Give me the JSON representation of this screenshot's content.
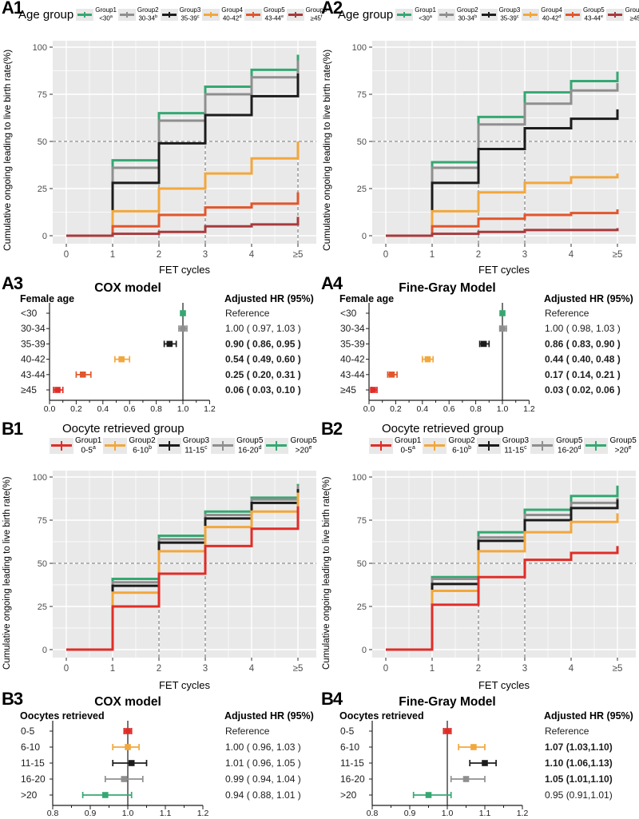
{
  "palette": {
    "green": "#35a872",
    "gray": "#8f8f8f",
    "black": "#1c1c1c",
    "orange": "#f2a73d",
    "orangered": "#e1562c",
    "darkred": "#a83a3d",
    "red": "#e02d28"
  },
  "style": {
    "panel_bg": "#e9e9e9",
    "grid": "#ffffff",
    "dash": "#8a8a8a",
    "tick": "#333333",
    "tick_label": "#4d4d4d",
    "legend_key_bg": "#e8e8e8"
  },
  "axes": {
    "ylabel": "Cumulative ongoing leading to live birth rate(%)",
    "xlabel": "FET cycles"
  },
  "chart_data": [
    {
      "id": "A1",
      "panel_label": "A1",
      "type": "step",
      "legend_title": "Age group",
      "legend_layout": "inline",
      "legend": [
        {
          "name": "Group1",
          "range": "<30",
          "sup": "a",
          "color": "green"
        },
        {
          "name": "Group2",
          "range": "30-34",
          "sup": "b",
          "color": "gray"
        },
        {
          "name": "Group3",
          "range": "35-39",
          "sup": "c",
          "color": "black"
        },
        {
          "name": "Group4",
          "range": "40-42",
          "sup": "d",
          "color": "orange"
        },
        {
          "name": "Group5",
          "range": "43-44",
          "sup": "e",
          "color": "orangered"
        },
        {
          "name": "Group6",
          "range": "≥45",
          "sup": "f",
          "color": "darkred"
        }
      ],
      "x_tick_labels": [
        "0",
        "1",
        "2",
        "3",
        "4",
        "≥5"
      ],
      "y_ticks": [
        0,
        25,
        50,
        75,
        100
      ],
      "ylim": [
        0,
        100
      ],
      "hline": 50,
      "vlines": [
        2,
        3,
        5
      ],
      "series": [
        {
          "name": "<30",
          "color": "green",
          "values": [
            0,
            40,
            65,
            79,
            88,
            96
          ]
        },
        {
          "name": "30-34",
          "color": "gray",
          "values": [
            0,
            36,
            61,
            75,
            84,
            93
          ]
        },
        {
          "name": "35-39",
          "color": "black",
          "values": [
            0,
            28,
            49,
            64,
            74,
            86
          ]
        },
        {
          "name": "40-42",
          "color": "orange",
          "values": [
            0,
            13,
            25,
            33,
            41,
            50
          ]
        },
        {
          "name": "43-44",
          "color": "orangered",
          "values": [
            0,
            5,
            11,
            15,
            17,
            23
          ]
        },
        {
          "name": "≥45",
          "color": "darkred",
          "values": [
            0,
            1,
            2,
            5,
            6,
            10
          ]
        }
      ]
    },
    {
      "id": "A2",
      "panel_label": "A2",
      "type": "step",
      "legend_title": "Age group",
      "legend_layout": "inline",
      "legend": [
        {
          "name": "Group1",
          "range": "<30",
          "sup": "a",
          "color": "green"
        },
        {
          "name": "Group2",
          "range": "30-34",
          "sup": "b",
          "color": "gray"
        },
        {
          "name": "Group3",
          "range": "35-39",
          "sup": "c",
          "color": "black"
        },
        {
          "name": "Group4",
          "range": "40-42",
          "sup": "d",
          "color": "orange"
        },
        {
          "name": "Group5",
          "range": "43-44",
          "sup": "e",
          "color": "orangered"
        },
        {
          "name": "Group6",
          "range": "≥45",
          "sup": "f",
          "color": "darkred"
        }
      ],
      "x_tick_labels": [
        "0",
        "1",
        "2",
        "3",
        "4",
        "≥5"
      ],
      "y_ticks": [
        0,
        25,
        50,
        75,
        100
      ],
      "ylim": [
        0,
        100
      ],
      "hline": 50,
      "vlines": [
        2,
        3
      ],
      "series": [
        {
          "name": "<30",
          "color": "green",
          "values": [
            0,
            39,
            63,
            76,
            82,
            87
          ]
        },
        {
          "name": "30-34",
          "color": "gray",
          "values": [
            0,
            36,
            59,
            70,
            77,
            81
          ]
        },
        {
          "name": "35-39",
          "color": "black",
          "values": [
            0,
            28,
            46,
            57,
            62,
            67
          ]
        },
        {
          "name": "40-42",
          "color": "orange",
          "values": [
            0,
            13,
            23,
            28,
            31,
            33
          ]
        },
        {
          "name": "43-44",
          "color": "orangered",
          "values": [
            0,
            5,
            9,
            11,
            12,
            14
          ]
        },
        {
          "name": "≥45",
          "color": "darkred",
          "values": [
            0,
            1,
            2,
            3,
            3,
            4
          ]
        }
      ]
    },
    {
      "id": "A3",
      "panel_label": "A3",
      "type": "forest",
      "title": "COX model",
      "col_header": "Female age",
      "hr_header": "Adjusted HR (95%)",
      "xlim": [
        0.0,
        1.2
      ],
      "x_ticks": [
        0.0,
        0.2,
        0.4,
        0.6,
        0.8,
        1.0,
        1.2
      ],
      "x_tick_labels": [
        "0.0",
        "0.2",
        "0.4",
        "0.6",
        "0.8",
        "1.0",
        "1.2"
      ],
      "refline": 1.0,
      "rows": [
        {
          "label": "<30",
          "color": "green",
          "est": 1.0,
          "lo": 1.0,
          "hi": 1.0,
          "hr": "Reference",
          "bold": false
        },
        {
          "label": "30-34",
          "color": "gray",
          "est": 1.0,
          "lo": 0.97,
          "hi": 1.03,
          "hr": "1.00 ( 0.97, 1.03 )",
          "bold": false
        },
        {
          "label": "35-39",
          "color": "black",
          "est": 0.9,
          "lo": 0.86,
          "hi": 0.95,
          "hr": "0.90 ( 0.86, 0.95 )",
          "bold": true
        },
        {
          "label": "40-42",
          "color": "orange",
          "est": 0.54,
          "lo": 0.49,
          "hi": 0.6,
          "hr": "0.54 ( 0.49, 0.60 )",
          "bold": true
        },
        {
          "label": "43-44",
          "color": "orangered",
          "est": 0.25,
          "lo": 0.2,
          "hi": 0.31,
          "hr": "0.25 ( 0.20, 0.31 )",
          "bold": true
        },
        {
          "label": "≥45",
          "color": "red",
          "est": 0.06,
          "lo": 0.03,
          "hi": 0.1,
          "hr": "0.06 ( 0.03, 0.10 )",
          "bold": true
        }
      ]
    },
    {
      "id": "A4",
      "panel_label": "A4",
      "type": "forest",
      "title": "Fine-Gray Model",
      "col_header": "Female age",
      "hr_header": "Adjusted HR (95%)",
      "xlim": [
        0.0,
        1.2
      ],
      "x_ticks": [
        0.0,
        0.2,
        0.4,
        0.6,
        0.8,
        1.0,
        1.2
      ],
      "x_tick_labels": [
        "0.0",
        "0.2",
        "0.4",
        "0.6",
        "0.8",
        "1.0",
        "1.2"
      ],
      "refline": 1.0,
      "rows": [
        {
          "label": "<30",
          "color": "green",
          "est": 1.0,
          "lo": 1.0,
          "hi": 1.0,
          "hr": "Reference",
          "bold": false
        },
        {
          "label": "30-34",
          "color": "gray",
          "est": 1.0,
          "lo": 0.98,
          "hi": 1.03,
          "hr": "1.00 ( 0.98, 1.03 )",
          "bold": false
        },
        {
          "label": "35-39",
          "color": "black",
          "est": 0.86,
          "lo": 0.83,
          "hi": 0.9,
          "hr": "0.86 ( 0.83, 0.90 )",
          "bold": true
        },
        {
          "label": "40-42",
          "color": "orange",
          "est": 0.44,
          "lo": 0.4,
          "hi": 0.48,
          "hr": "0.44 ( 0.40, 0.48 )",
          "bold": true
        },
        {
          "label": "43-44",
          "color": "orangered",
          "est": 0.17,
          "lo": 0.14,
          "hi": 0.21,
          "hr": "0.17 ( 0.14, 0.21 )",
          "bold": true
        },
        {
          "label": "≥45",
          "color": "red",
          "est": 0.03,
          "lo": 0.02,
          "hi": 0.06,
          "hr": "0.03 ( 0.02, 0.06 )",
          "bold": true
        }
      ]
    },
    {
      "id": "B1",
      "panel_label": "B1",
      "type": "step",
      "legend_title": "Oocyte retrieved group",
      "legend_layout": "titled",
      "legend": [
        {
          "name": "Group1",
          "range": "0-5",
          "sup": "a",
          "color": "red"
        },
        {
          "name": "Group2",
          "range": "6-10",
          "sup": "b",
          "color": "orange"
        },
        {
          "name": "Group3",
          "range": "11-15",
          "sup": "c",
          "color": "black"
        },
        {
          "name": "Group5",
          "range": "16-20",
          "sup": "d",
          "color": "gray"
        },
        {
          "name": "Group5",
          "range": ">20",
          "sup": "e",
          "color": "green"
        }
      ],
      "x_tick_labels": [
        "0",
        "1",
        "2",
        "3",
        "4",
        "≥5"
      ],
      "y_ticks": [
        0,
        25,
        50,
        75,
        100
      ],
      "ylim": [
        0,
        100
      ],
      "hline": 50,
      "vlines": [
        2,
        3
      ],
      "series": [
        {
          "name": ">20",
          "color": "green",
          "values": [
            0,
            41,
            66,
            80,
            88,
            96
          ]
        },
        {
          "name": "16-20",
          "color": "gray",
          "values": [
            0,
            39,
            64,
            78,
            87,
            95
          ]
        },
        {
          "name": "11-15",
          "color": "black",
          "values": [
            0,
            37,
            62,
            76,
            85,
            93
          ]
        },
        {
          "name": "6-10",
          "color": "orange",
          "values": [
            0,
            33,
            57,
            71,
            80,
            91
          ]
        },
        {
          "name": "0-5",
          "color": "red",
          "values": [
            0,
            25,
            44,
            60,
            70,
            83
          ]
        }
      ]
    },
    {
      "id": "B2",
      "panel_label": "B2",
      "type": "step",
      "legend_title": "Oocyte retrieved group",
      "legend_layout": "titled",
      "legend": [
        {
          "name": "Group1",
          "range": "0-5",
          "sup": "a",
          "color": "red"
        },
        {
          "name": "Group2",
          "range": "6-10",
          "sup": "b",
          "color": "orange"
        },
        {
          "name": "Group3",
          "range": "11-15",
          "sup": "c",
          "color": "black"
        },
        {
          "name": "Group5",
          "range": "16-20",
          "sup": "d",
          "color": "gray"
        },
        {
          "name": "Group5",
          "range": ">20",
          "sup": "e",
          "color": "green"
        }
      ],
      "x_tick_labels": [
        "0",
        "1",
        "2",
        "3",
        "4",
        "≥5"
      ],
      "y_ticks": [
        0,
        25,
        50,
        75,
        100
      ],
      "ylim": [
        0,
        100
      ],
      "hline": 50,
      "vlines": [
        2,
        3
      ],
      "series": [
        {
          "name": ">20",
          "color": "green",
          "values": [
            0,
            42,
            68,
            81,
            89,
            95
          ]
        },
        {
          "name": "16-20",
          "color": "gray",
          "values": [
            0,
            41,
            65,
            78,
            85,
            88
          ]
        },
        {
          "name": "11-15",
          "color": "black",
          "values": [
            0,
            38,
            63,
            75,
            82,
            87
          ]
        },
        {
          "name": "6-10",
          "color": "orange",
          "values": [
            0,
            34,
            57,
            68,
            74,
            79
          ]
        },
        {
          "name": "0-5",
          "color": "red",
          "values": [
            0,
            26,
            42,
            52,
            56,
            60
          ]
        }
      ]
    },
    {
      "id": "B3",
      "panel_label": "B3",
      "type": "forest",
      "title": "COX model",
      "col_header": "Oocytes retrieved",
      "hr_header": "Adjusted HR (95%)",
      "xlim": [
        0.8,
        1.2
      ],
      "x_ticks": [
        0.8,
        0.9,
        1.0,
        1.1,
        1.2
      ],
      "x_tick_labels": [
        "0.8",
        "0.9",
        "1.0",
        "1.1",
        "1.2"
      ],
      "refline": 1.0,
      "rows": [
        {
          "label": "0-5",
          "color": "red",
          "est": 1.0,
          "lo": 0.99,
          "hi": 1.01,
          "hr": "Reference",
          "bold": false
        },
        {
          "label": "6-10",
          "color": "orange",
          "est": 1.0,
          "lo": 0.96,
          "hi": 1.03,
          "hr": "1.00 ( 0.96, 1.03 )",
          "bold": false
        },
        {
          "label": "11-15",
          "color": "black",
          "est": 1.01,
          "lo": 0.96,
          "hi": 1.05,
          "hr": "1.01 ( 0.96, 1.05 )",
          "bold": false
        },
        {
          "label": "16-20",
          "color": "gray",
          "est": 0.99,
          "lo": 0.94,
          "hi": 1.04,
          "hr": "0.99 ( 0.94, 1.04 )",
          "bold": false
        },
        {
          "label": ">20",
          "color": "green",
          "est": 0.94,
          "lo": 0.88,
          "hi": 1.01,
          "hr": "0.94 ( 0.88, 1.01 )",
          "bold": false
        }
      ]
    },
    {
      "id": "B4",
      "panel_label": "B4",
      "type": "forest",
      "title": "Fine-Gray Model",
      "col_header": "Oocytes retrieved",
      "hr_header": "Adjusted HR (95%)",
      "xlim": [
        0.8,
        1.2
      ],
      "x_ticks": [
        0.8,
        0.9,
        1.0,
        1.1,
        1.2
      ],
      "x_tick_labels": [
        "0.8",
        "0.9",
        "1.0",
        "1.1",
        "1.2"
      ],
      "refline": 1.0,
      "rows": [
        {
          "label": "0-5",
          "color": "red",
          "est": 1.0,
          "lo": 0.99,
          "hi": 1.01,
          "hr": "Reference",
          "bold": false
        },
        {
          "label": "6-10",
          "color": "orange",
          "est": 1.07,
          "lo": 1.03,
          "hi": 1.1,
          "hr": "1.07 (1.03,1.10)",
          "bold": true
        },
        {
          "label": "11-15",
          "color": "black",
          "est": 1.1,
          "lo": 1.06,
          "hi": 1.13,
          "hr": "1.10 (1.06,1.13)",
          "bold": true
        },
        {
          "label": "16-20",
          "color": "gray",
          "est": 1.05,
          "lo": 1.01,
          "hi": 1.1,
          "hr": "1.05 (1.01,1.10)",
          "bold": true
        },
        {
          "label": ">20",
          "color": "green",
          "est": 0.95,
          "lo": 0.91,
          "hi": 1.01,
          "hr": "0.95 (0.91,1.01)",
          "bold": false
        }
      ]
    }
  ]
}
